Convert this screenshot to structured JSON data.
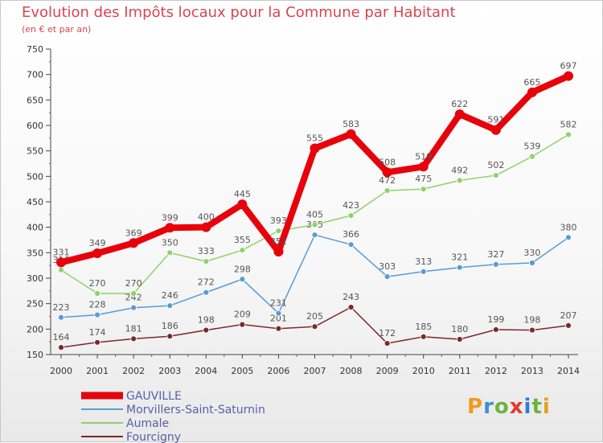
{
  "header": {
    "title": "Evolution des Impôts locaux pour la Commune par Habitant",
    "subtitle": "(en € et par an)"
  },
  "brand": {
    "letters": [
      "P",
      "r",
      "o",
      "x",
      "i",
      "t",
      "i"
    ],
    "colors": [
      "#f29a1b",
      "#3a8fd6",
      "#6cb33f",
      "#e23b2e",
      "#2e7dd6",
      "#6cb33f",
      "#e2a21b"
    ]
  },
  "chart_data": {
    "type": "line",
    "title": "Evolution des Impôts locaux pour la Commune par Habitant",
    "subtitle": "(en € et par an)",
    "x": [
      "2000",
      "2001",
      "2002",
      "2003",
      "2004",
      "2005",
      "2006",
      "2007",
      "2008",
      "2009",
      "2010",
      "2011",
      "2012",
      "2013",
      "2014"
    ],
    "ylim": [
      150,
      750
    ],
    "yticks": [
      150,
      200,
      250,
      300,
      350,
      400,
      450,
      500,
      550,
      600,
      650,
      700,
      750
    ],
    "grid": false,
    "legend_position": "bottom-left",
    "series": [
      {
        "name": "GAUVILLE",
        "color": "#e8000b",
        "values": [
          331,
          349,
          369,
          399,
          400,
          445,
          352,
          555,
          583,
          508,
          519,
          622,
          591,
          665,
          697
        ],
        "labels": [
          "331",
          "349",
          "369",
          "399",
          "400",
          "445",
          "352",
          "555",
          "583",
          "508",
          "519",
          "622",
          "591",
          "665",
          "697"
        ]
      },
      {
        "name": "Morvillers-Saint-Saturnin",
        "color": "#5a9bd5",
        "values": [
          223,
          228,
          242,
          246,
          272,
          298,
          231,
          385,
          366,
          303,
          313,
          321,
          327,
          330,
          380
        ],
        "labels": [
          "223",
          "228",
          "242",
          "246",
          "272",
          "298",
          "231",
          "385",
          "366",
          "303",
          "313",
          "321",
          "327",
          "330",
          "380"
        ]
      },
      {
        "name": "Aumale",
        "color": "#8fd16b",
        "values": [
          316,
          270,
          270,
          350,
          333,
          355,
          393,
          405,
          423,
          472,
          475,
          492,
          502,
          539,
          582
        ],
        "labels": [
          "316",
          "270",
          "270",
          "350",
          "333",
          "355",
          "393",
          "405",
          "423",
          "472",
          "475",
          "492",
          "502",
          "539",
          "582"
        ]
      },
      {
        "name": "Fourcigny",
        "color": "#7a2a2a",
        "values": [
          164,
          174,
          181,
          186,
          198,
          209,
          201,
          205,
          243,
          172,
          185,
          180,
          199,
          198,
          207
        ],
        "labels": [
          "164",
          "174",
          "181",
          "186",
          "198",
          "209",
          "201",
          "205",
          "243",
          "172",
          "185",
          "180",
          "199",
          "198",
          "207"
        ]
      }
    ]
  }
}
